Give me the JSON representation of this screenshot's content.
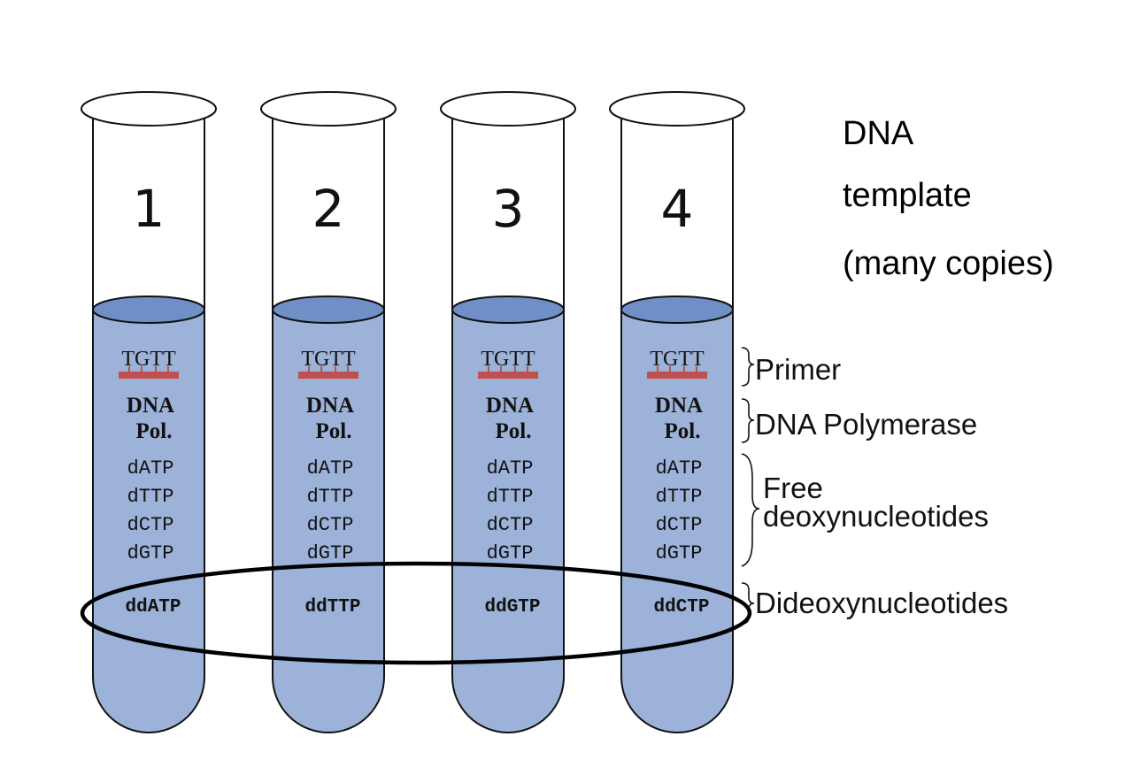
{
  "tubes": [
    {
      "number": "1",
      "primer_seq": "TGTT",
      "pol_line1": "DNA",
      "pol_line2": "Pol.",
      "nucleotides": [
        "dATP",
        "dTTP",
        "dCTP",
        "dGTP"
      ],
      "dideoxy": "ddATP"
    },
    {
      "number": "2",
      "primer_seq": "TGTT",
      "pol_line1": "DNA",
      "pol_line2": "Pol.",
      "nucleotides": [
        "dATP",
        "dTTP",
        "dCTP",
        "dGTP"
      ],
      "dideoxy": "ddTTP"
    },
    {
      "number": "3",
      "primer_seq": "TGTT",
      "pol_line1": "DNA",
      "pol_line2": "Pol.",
      "nucleotides": [
        "dATP",
        "dTTP",
        "dCTP",
        "dGTP"
      ],
      "dideoxy": "ddGTP"
    },
    {
      "number": "4",
      "primer_seq": "TGTT",
      "pol_line1": "DNA",
      "pol_line2": "Pol.",
      "nucleotides": [
        "dATP",
        "dTTP",
        "dCTP",
        "dGTP"
      ],
      "dideoxy": "ddCTP"
    }
  ],
  "labels": {
    "primer": "Primer",
    "polymerase": "DNA Polymerase",
    "free_line1": "Free",
    "free_line2": "deoxynucleotides",
    "dideoxy": "Dideoxynucleotides"
  },
  "template_label": {
    "line1": "DNA",
    "line2": "template",
    "line3": "(many copies)"
  },
  "colors": {
    "liquid": "#9cb2d8",
    "liquid_surface": "#6f8fc6",
    "primer_bar": "#c0504d",
    "outline": "#111111"
  }
}
